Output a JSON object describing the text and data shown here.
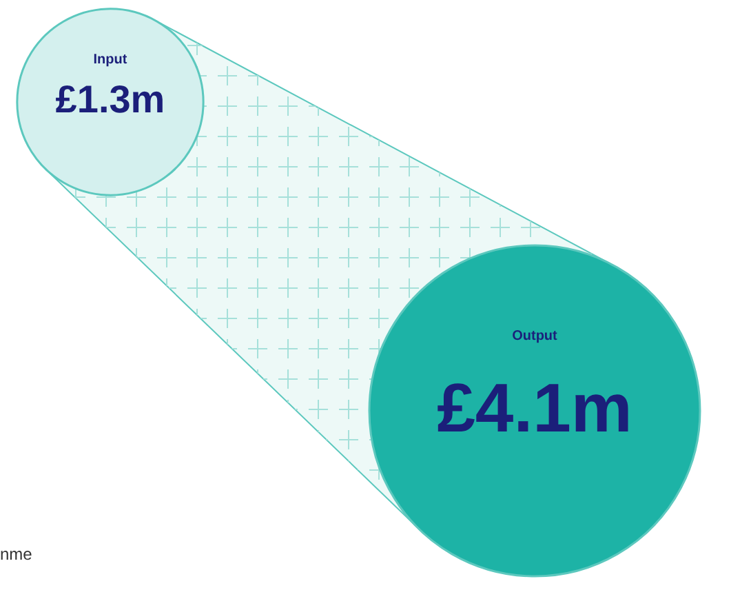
{
  "chart_data": {
    "type": "other",
    "categories": [
      "Input",
      "Output"
    ],
    "values": [
      1.3,
      4.1
    ],
    "value_labels": [
      "£1.3m",
      "£4.1m"
    ],
    "colors": [
      "#d4f0ee",
      "#1db3a6"
    ],
    "annotations": [
      "nme"
    ]
  }
}
